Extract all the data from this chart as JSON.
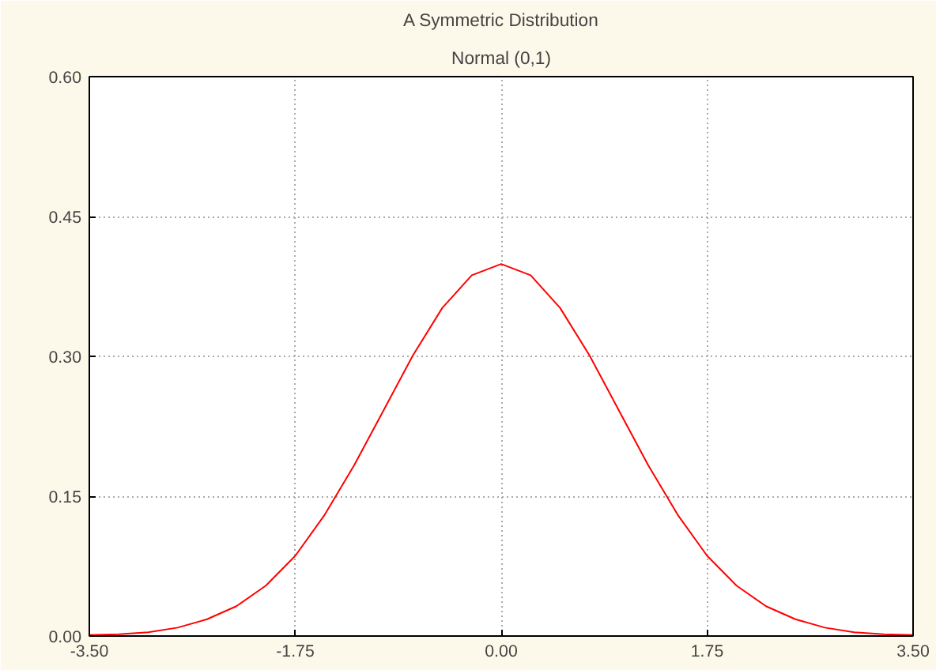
{
  "chart_data": {
    "type": "line",
    "title": "A Symmetric Distribution",
    "subtitle": "Normal (0,1)",
    "x": [
      -3.5,
      -3.25,
      -3.0,
      -2.75,
      -2.5,
      -2.25,
      -2.0,
      -1.75,
      -1.5,
      -1.25,
      -1.0,
      -0.75,
      -0.5,
      -0.25,
      0.0,
      0.25,
      0.5,
      0.75,
      1.0,
      1.25,
      1.5,
      1.75,
      2.0,
      2.25,
      2.5,
      2.75,
      3.0,
      3.25,
      3.5
    ],
    "series": [
      {
        "color": "#ff0000",
        "values": [
          0.001,
          0.002,
          0.004,
          0.009,
          0.018,
          0.032,
          0.054,
          0.086,
          0.13,
          0.183,
          0.242,
          0.301,
          0.352,
          0.387,
          0.399,
          0.387,
          0.352,
          0.301,
          0.242,
          0.183,
          0.13,
          0.086,
          0.054,
          0.032,
          0.018,
          0.009,
          0.004,
          0.002,
          0.001
        ]
      }
    ],
    "xlim": [
      -3.5,
      3.5
    ],
    "ylim": [
      0,
      0.6
    ],
    "xticks": [
      {
        "value": -3.5,
        "label": "-3.50"
      },
      {
        "value": -1.75,
        "label": "-1.75"
      },
      {
        "value": 0,
        "label": "0.00"
      },
      {
        "value": 1.75,
        "label": "1.75"
      },
      {
        "value": 3.5,
        "label": "3.50"
      }
    ],
    "yticks": [
      {
        "value": 0,
        "label": "0.00"
      },
      {
        "value": 0.15,
        "label": "0.15"
      },
      {
        "value": 0.3,
        "label": "0.30"
      },
      {
        "value": 0.45,
        "label": "0.45"
      },
      {
        "value": 0.6,
        "label": "0.60"
      }
    ],
    "grid": true,
    "line_style": "solid",
    "marker": "none"
  }
}
